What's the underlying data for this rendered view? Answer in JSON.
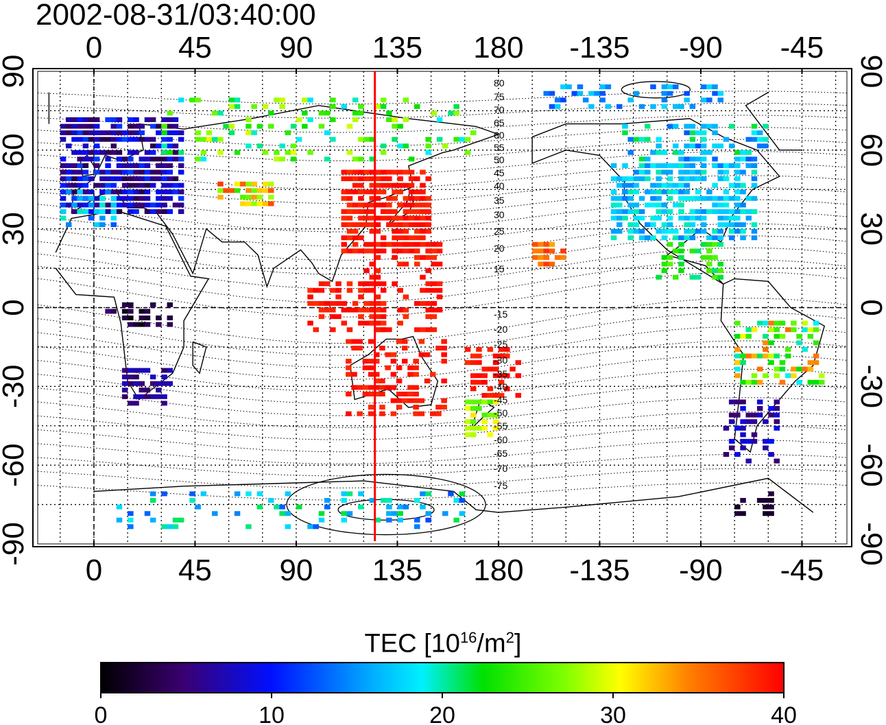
{
  "map": {
    "title": "2002-08-31/03:40:00",
    "top_lon_ticks": [
      "0",
      "45",
      "90",
      "135",
      "180",
      "-135",
      "-90",
      "-45"
    ],
    "bottom_lon_ticks": [
      "0",
      "45",
      "90",
      "135",
      "180",
      "-135",
      "-90",
      "-45"
    ],
    "left_lat_ticks": [
      "90",
      "60",
      "30",
      "0",
      "-30",
      "-60",
      "-90"
    ],
    "right_lat_ticks": [
      "90",
      "60",
      "30",
      "0",
      "-30",
      "-60",
      "-90"
    ],
    "subsolar_longitude_marker": 125,
    "marker_color": "#ff0000",
    "contour_labels": [
      "80",
      "75",
      "70",
      "65",
      "60",
      "55",
      "50",
      "45",
      "40",
      "35",
      "30",
      "25",
      "20",
      "15",
      "-15",
      "-20",
      "-25",
      "-30",
      "-35",
      "-40",
      "-45",
      "-50",
      "-55",
      "-60",
      "-65",
      "-70",
      "-75"
    ]
  },
  "colorbar": {
    "title_main": "TEC  [10",
    "title_exp1": "16",
    "title_mid": "/m",
    "title_exp2": "2",
    "title_end": "]",
    "ticks": [
      "0",
      "10",
      "20",
      "30",
      "40"
    ],
    "range": [
      0,
      40
    ],
    "colormap": [
      "#000000",
      "#3a0070",
      "#0010ff",
      "#00f0ff",
      "#00e000",
      "#ffff00",
      "#ff8000",
      "#ff0000"
    ]
  }
}
